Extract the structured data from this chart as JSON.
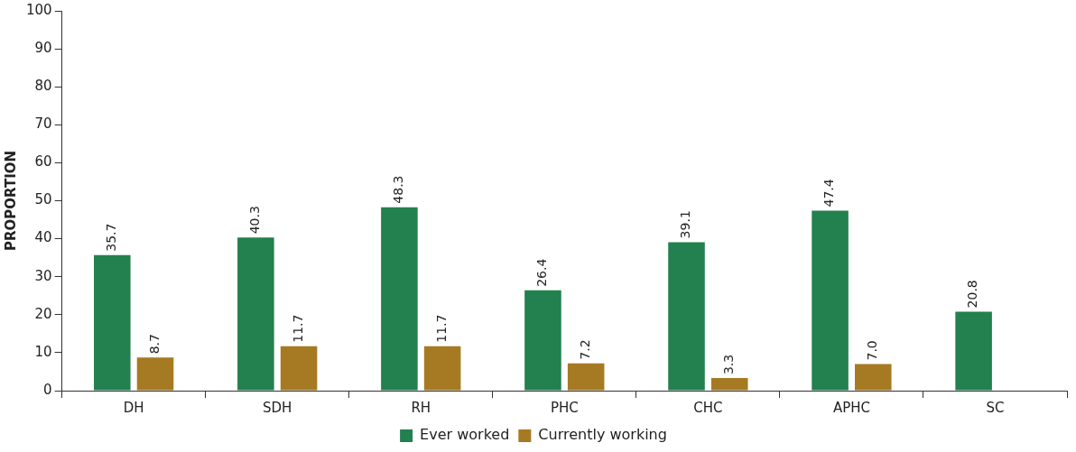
{
  "chart_data": {
    "type": "bar",
    "ylabel": "PROPORTION",
    "categories": [
      "DH",
      "SDH",
      "RH",
      "PHC",
      "CHC",
      "APHC",
      "SC"
    ],
    "series": [
      {
        "name": "Ever worked",
        "color": "#23804f",
        "values": [
          35.7,
          40.3,
          48.3,
          26.4,
          39.1,
          47.4,
          20.8
        ],
        "value_labels": [
          "35.7",
          "40.3",
          "48.3",
          "26.4",
          "39.1",
          "47.4",
          "20.8"
        ]
      },
      {
        "name": "Currently working",
        "color": "#a67a22",
        "values": [
          8.7,
          11.7,
          11.7,
          7.2,
          3.3,
          7.0,
          null
        ],
        "value_labels": [
          "8.7",
          "11.7",
          "11.7",
          "7.2",
          "3.3",
          "7.0",
          null
        ]
      }
    ],
    "ylim": [
      0,
      100
    ],
    "yticks": [
      0,
      10,
      20,
      30,
      40,
      50,
      60,
      70,
      80,
      90,
      100
    ],
    "legend": "bottom"
  }
}
